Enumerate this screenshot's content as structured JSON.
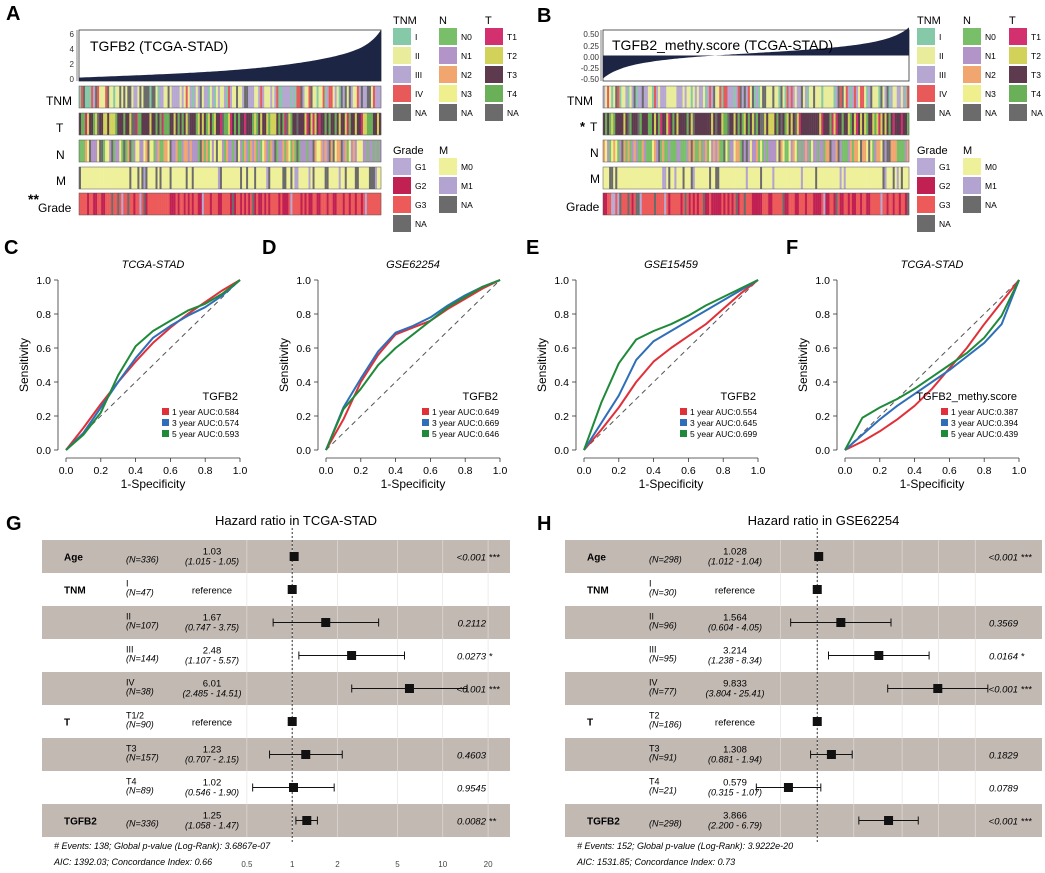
{
  "panels": {
    "A": "A",
    "B": "B",
    "C": "C",
    "D": "D",
    "E": "E",
    "F": "F",
    "G": "G",
    "H": "H"
  },
  "heatmaps": [
    {
      "panel": "A",
      "title": "TGFB2 (TCGA-STAD)",
      "yticks": [
        "6",
        "4",
        "2",
        "0"
      ],
      "yvals": [
        6,
        4,
        2,
        0
      ],
      "curve_start": 0.4,
      "curve_end": 6.0,
      "curve_type": "expression",
      "rows": [
        {
          "label": "TNM",
          "mark": ""
        },
        {
          "label": "T",
          "mark": ""
        },
        {
          "label": "N",
          "mark": ""
        },
        {
          "label": "M",
          "mark": ""
        },
        {
          "label": "Grade",
          "mark": "**"
        }
      ]
    },
    {
      "panel": "B",
      "title": "TGFB2_methy.score (TCGA-STAD)",
      "yticks": [
        "0.50",
        "0.25",
        "0.00",
        "-0.25",
        "-0.50"
      ],
      "yvals": [
        0.5,
        0.25,
        0.0,
        -0.25,
        -0.5
      ],
      "curve_start": -0.45,
      "curve_end": 0.55,
      "curve_type": "methylation",
      "rows": [
        {
          "label": "TNM",
          "mark": ""
        },
        {
          "label": "T",
          "mark": "*"
        },
        {
          "label": "N",
          "mark": ""
        },
        {
          "label": "M",
          "mark": ""
        },
        {
          "label": "Grade",
          "mark": ""
        }
      ]
    }
  ],
  "legend": {
    "TNM": {
      "title": "TNM",
      "items": [
        {
          "label": "I",
          "color": "#86c9a8"
        },
        {
          "label": "II",
          "color": "#e9ec9a"
        },
        {
          "label": "III",
          "color": "#b6a6d2"
        },
        {
          "label": "IV",
          "color": "#e85a5a"
        },
        {
          "label": "NA",
          "color": "#6b6b6b"
        }
      ]
    },
    "N": {
      "title": "N",
      "items": [
        {
          "label": "N0",
          "color": "#79bf69"
        },
        {
          "label": "N1",
          "color": "#b294c9"
        },
        {
          "label": "N2",
          "color": "#f2a66f"
        },
        {
          "label": "N3",
          "color": "#f0ef8e"
        },
        {
          "label": "NA",
          "color": "#6b6b6b"
        }
      ]
    },
    "T": {
      "title": "T",
      "items": [
        {
          "label": "T1",
          "color": "#d2306e"
        },
        {
          "label": "T2",
          "color": "#d2d25a"
        },
        {
          "label": "T3",
          "color": "#5e3a4f"
        },
        {
          "label": "T4",
          "color": "#6ab058"
        },
        {
          "label": "NA",
          "color": "#6b6b6b"
        }
      ]
    },
    "Grade": {
      "title": "Grade",
      "items": [
        {
          "label": "G1",
          "color": "#b8a9d5"
        },
        {
          "label": "G2",
          "color": "#c02052"
        },
        {
          "label": "G3",
          "color": "#ec5a5a"
        },
        {
          "label": "NA",
          "color": "#6b6b6b"
        }
      ]
    },
    "M": {
      "title": "M",
      "items": [
        {
          "label": "M0",
          "color": "#eef09a"
        },
        {
          "label": "M1",
          "color": "#b3a3d0"
        },
        {
          "label": "NA",
          "color": "#6b6b6b"
        }
      ]
    }
  },
  "chart_data": [
    {
      "panel": "C",
      "type": "line",
      "title": "TCGA-STAD",
      "xlabel": "1-Specificity",
      "ylabel": "Sensitivity",
      "xlim": [
        0,
        1
      ],
      "ylim": [
        0,
        1
      ],
      "ticks": [
        "0.0",
        "0.2",
        "0.4",
        "0.6",
        "0.8",
        "1.0"
      ],
      "legend_title": "TGFB2",
      "series": [
        {
          "name": "1 year AUC:0.584",
          "color": "#e0303a",
          "x": [
            0,
            0.1,
            0.2,
            0.3,
            0.4,
            0.5,
            0.6,
            0.7,
            0.8,
            0.9,
            1.0
          ],
          "y": [
            0,
            0.13,
            0.27,
            0.4,
            0.52,
            0.63,
            0.72,
            0.8,
            0.87,
            0.94,
            1.0
          ]
        },
        {
          "name": "3 year AUC:0.574",
          "color": "#2f6fba",
          "x": [
            0,
            0.1,
            0.2,
            0.3,
            0.4,
            0.5,
            0.6,
            0.7,
            0.8,
            0.9,
            1.0
          ],
          "y": [
            0,
            0.1,
            0.25,
            0.4,
            0.54,
            0.66,
            0.73,
            0.79,
            0.84,
            0.91,
            1.0
          ]
        },
        {
          "name": "5 year AUC:0.593",
          "color": "#1f8a3a",
          "x": [
            0,
            0.1,
            0.2,
            0.3,
            0.4,
            0.5,
            0.6,
            0.7,
            0.8,
            0.9,
            1.0
          ],
          "y": [
            0,
            0.09,
            0.22,
            0.44,
            0.61,
            0.7,
            0.76,
            0.82,
            0.86,
            0.92,
            1.0
          ]
        }
      ]
    },
    {
      "panel": "D",
      "type": "line",
      "title": "GSE62254",
      "xlabel": "1-Specificity",
      "ylabel": "Sensitivity",
      "xlim": [
        0,
        1
      ],
      "ylim": [
        0,
        1
      ],
      "ticks": [
        "0.0",
        "0.2",
        "0.4",
        "0.6",
        "0.8",
        "1.0"
      ],
      "legend_title": "TGFB2",
      "series": [
        {
          "name": "1 year AUC:0.649",
          "color": "#e0303a",
          "x": [
            0,
            0.1,
            0.2,
            0.3,
            0.4,
            0.5,
            0.6,
            0.7,
            0.8,
            0.9,
            1.0
          ],
          "y": [
            0,
            0.18,
            0.4,
            0.56,
            0.68,
            0.72,
            0.76,
            0.83,
            0.89,
            0.95,
            1.0
          ]
        },
        {
          "name": "3 year AUC:0.669",
          "color": "#2f6fba",
          "x": [
            0,
            0.1,
            0.2,
            0.3,
            0.4,
            0.5,
            0.6,
            0.7,
            0.8,
            0.9,
            1.0
          ],
          "y": [
            0,
            0.25,
            0.42,
            0.58,
            0.69,
            0.73,
            0.78,
            0.85,
            0.91,
            0.96,
            1.0
          ]
        },
        {
          "name": "5 year AUC:0.646",
          "color": "#1f8a3a",
          "x": [
            0,
            0.1,
            0.2,
            0.3,
            0.4,
            0.5,
            0.6,
            0.7,
            0.8,
            0.9,
            1.0
          ],
          "y": [
            0,
            0.24,
            0.36,
            0.5,
            0.6,
            0.68,
            0.76,
            0.84,
            0.9,
            0.96,
            1.0
          ]
        }
      ]
    },
    {
      "panel": "E",
      "type": "line",
      "title": "GSE15459",
      "xlabel": "1-Specificity",
      "ylabel": "Sensitivity",
      "xlim": [
        0,
        1
      ],
      "ylim": [
        0,
        1
      ],
      "ticks": [
        "0.0",
        "0.2",
        "0.4",
        "0.6",
        "0.8",
        "1.0"
      ],
      "legend_title": "TGFB2",
      "series": [
        {
          "name": "1 year AUC:0.554",
          "color": "#e0303a",
          "x": [
            0,
            0.1,
            0.2,
            0.3,
            0.4,
            0.5,
            0.6,
            0.7,
            0.8,
            0.9,
            1.0
          ],
          "y": [
            0,
            0.12,
            0.25,
            0.4,
            0.52,
            0.6,
            0.67,
            0.74,
            0.83,
            0.92,
            1.0
          ]
        },
        {
          "name": "3 year AUC:0.645",
          "color": "#2f6fba",
          "x": [
            0,
            0.1,
            0.2,
            0.3,
            0.4,
            0.5,
            0.6,
            0.7,
            0.8,
            0.9,
            1.0
          ],
          "y": [
            0,
            0.16,
            0.32,
            0.53,
            0.64,
            0.7,
            0.76,
            0.82,
            0.88,
            0.94,
            1.0
          ]
        },
        {
          "name": "5 year AUC:0.699",
          "color": "#1f8a3a",
          "x": [
            0,
            0.1,
            0.2,
            0.3,
            0.4,
            0.5,
            0.6,
            0.7,
            0.8,
            0.9,
            1.0
          ],
          "y": [
            0,
            0.28,
            0.51,
            0.65,
            0.7,
            0.74,
            0.79,
            0.85,
            0.9,
            0.95,
            1.0
          ]
        }
      ]
    },
    {
      "panel": "F",
      "type": "line",
      "title": "TCGA-STAD",
      "xlabel": "1-Specificity",
      "ylabel": "Sensitivity",
      "xlim": [
        0,
        1
      ],
      "ylim": [
        0,
        1
      ],
      "ticks": [
        "0.0",
        "0.2",
        "0.4",
        "0.6",
        "0.8",
        "1.0"
      ],
      "legend_title": "TGFB2_methy.score",
      "series": [
        {
          "name": "1 year AUC:0.387",
          "color": "#e0303a",
          "x": [
            0,
            0.1,
            0.2,
            0.3,
            0.4,
            0.5,
            0.6,
            0.7,
            0.8,
            0.9,
            1.0
          ],
          "y": [
            0,
            0.05,
            0.11,
            0.18,
            0.26,
            0.36,
            0.48,
            0.6,
            0.74,
            0.87,
            1.0
          ]
        },
        {
          "name": "3 year AUC:0.394",
          "color": "#2f6fba",
          "x": [
            0,
            0.1,
            0.2,
            0.3,
            0.4,
            0.5,
            0.6,
            0.7,
            0.8,
            0.9,
            1.0
          ],
          "y": [
            0,
            0.09,
            0.18,
            0.26,
            0.33,
            0.4,
            0.47,
            0.55,
            0.63,
            0.74,
            1.0
          ]
        },
        {
          "name": "5 year AUC:0.439",
          "color": "#1f8a3a",
          "x": [
            0,
            0.1,
            0.2,
            0.3,
            0.4,
            0.5,
            0.6,
            0.7,
            0.8,
            0.9,
            1.0
          ],
          "y": [
            0,
            0.19,
            0.25,
            0.3,
            0.36,
            0.43,
            0.5,
            0.57,
            0.66,
            0.79,
            1.0
          ]
        }
      ]
    },
    {
      "panel": "G",
      "type": "forest",
      "title": "Hazard ratio in TCGA-STAD",
      "scale": "log",
      "xlim": [
        0.45,
        24
      ],
      "ticks": [
        0.5,
        1,
        2,
        5,
        10,
        20
      ],
      "tick_labels": [
        "0.5",
        "1",
        "2",
        "5",
        "10",
        "20"
      ],
      "rows": [
        {
          "var": "Age",
          "level": "",
          "n": "(N=336)",
          "hr": 1.03,
          "hr_text": "1.03",
          "ci_text": "(1.015 - 1.05)",
          "lo": 1.015,
          "hi": 1.05,
          "p": "<0.001",
          "sig": "***",
          "shaded": true
        },
        {
          "var": "TNM",
          "level": "I",
          "n": "(N=47)",
          "hr": 1.0,
          "hr_text": "reference",
          "ci_text": "",
          "lo": 1.0,
          "hi": 1.0,
          "p": "",
          "sig": "",
          "shaded": false
        },
        {
          "var": "",
          "level": "II",
          "n": "(N=107)",
          "hr": 1.67,
          "hr_text": "1.67",
          "ci_text": "(0.747 - 3.75)",
          "lo": 0.747,
          "hi": 3.75,
          "p": "0.2112",
          "sig": "",
          "shaded": true
        },
        {
          "var": "",
          "level": "III",
          "n": "(N=144)",
          "hr": 2.48,
          "hr_text": "2.48",
          "ci_text": "(1.107 - 5.57)",
          "lo": 1.107,
          "hi": 5.57,
          "p": "0.0273",
          "sig": "*",
          "shaded": false
        },
        {
          "var": "",
          "level": "IV",
          "n": "(N=38)",
          "hr": 6.01,
          "hr_text": "6.01",
          "ci_text": "(2.485 - 14.51)",
          "lo": 2.485,
          "hi": 14.51,
          "p": "<0.001",
          "sig": "***",
          "shaded": true
        },
        {
          "var": "T",
          "level": "T1/2",
          "n": "(N=90)",
          "hr": 1.0,
          "hr_text": "reference",
          "ci_text": "",
          "lo": 1.0,
          "hi": 1.0,
          "p": "",
          "sig": "",
          "shaded": false
        },
        {
          "var": "",
          "level": "T3",
          "n": "(N=157)",
          "hr": 1.23,
          "hr_text": "1.23",
          "ci_text": "(0.707 - 2.15)",
          "lo": 0.707,
          "hi": 2.15,
          "p": "0.4603",
          "sig": "",
          "shaded": true
        },
        {
          "var": "",
          "level": "T4",
          "n": "(N=89)",
          "hr": 1.02,
          "hr_text": "1.02",
          "ci_text": "(0.546 - 1.90)",
          "lo": 0.546,
          "hi": 1.9,
          "p": "0.9545",
          "sig": "",
          "shaded": false
        },
        {
          "var": "TGFB2",
          "level": "",
          "n": "(N=336)",
          "hr": 1.25,
          "hr_text": "1.25",
          "ci_text": "(1.058 - 1.47)",
          "lo": 1.058,
          "hi": 1.47,
          "p": "0.0082",
          "sig": "**",
          "shaded": true
        }
      ],
      "footer1": "# Events: 138; Global p-value (Log-Rank): 3.6867e-07",
      "footer2": "AIC: 1392.03; Concordance Index: 0.66"
    },
    {
      "panel": "H",
      "type": "forest",
      "title": "Hazard ratio in GSE62254",
      "scale": "log",
      "xlim": [
        0.24,
        32
      ],
      "ticks": [
        0.5,
        1,
        2,
        5,
        10,
        20
      ],
      "tick_labels": [
        "",
        "",
        "",
        "",
        "",
        ""
      ],
      "rows": [
        {
          "var": "Age",
          "level": "",
          "n": "(N=298)",
          "hr": 1.028,
          "hr_text": "1.028",
          "ci_text": "(1.012 - 1.04)",
          "lo": 1.012,
          "hi": 1.04,
          "p": "<0.001",
          "sig": "***",
          "shaded": true
        },
        {
          "var": "TNM",
          "level": "I",
          "n": "(N=30)",
          "hr": 1.0,
          "hr_text": "reference",
          "ci_text": "",
          "lo": 1.0,
          "hi": 1.0,
          "p": "",
          "sig": "",
          "shaded": false
        },
        {
          "var": "",
          "level": "II",
          "n": "(N=96)",
          "hr": 1.564,
          "hr_text": "1.564",
          "ci_text": "(0.604 - 4.05)",
          "lo": 0.604,
          "hi": 4.05,
          "p": "0.3569",
          "sig": "",
          "shaded": true
        },
        {
          "var": "",
          "level": "III",
          "n": "(N=95)",
          "hr": 3.214,
          "hr_text": "3.214",
          "ci_text": "(1.238 - 8.34)",
          "lo": 1.238,
          "hi": 8.34,
          "p": "0.0164",
          "sig": "*",
          "shaded": false
        },
        {
          "var": "",
          "level": "IV",
          "n": "(N=77)",
          "hr": 9.833,
          "hr_text": "9.833",
          "ci_text": "(3.804 - 25.41)",
          "lo": 3.804,
          "hi": 25.41,
          "p": "<0.001",
          "sig": "***",
          "shaded": true
        },
        {
          "var": "T",
          "level": "T2",
          "n": "(N=186)",
          "hr": 1.0,
          "hr_text": "reference",
          "ci_text": "",
          "lo": 1.0,
          "hi": 1.0,
          "p": "",
          "sig": "",
          "shaded": false
        },
        {
          "var": "",
          "level": "T3",
          "n": "(N=91)",
          "hr": 1.308,
          "hr_text": "1.308",
          "ci_text": "(0.881 - 1.94)",
          "lo": 0.881,
          "hi": 1.94,
          "p": "0.1829",
          "sig": "",
          "shaded": true
        },
        {
          "var": "",
          "level": "T4",
          "n": "(N=21)",
          "hr": 0.579,
          "hr_text": "0.579",
          "ci_text": "(0.315 - 1.07)",
          "lo": 0.315,
          "hi": 1.07,
          "p": "0.0789",
          "sig": "",
          "shaded": false
        },
        {
          "var": "TGFB2",
          "level": "",
          "n": "(N=298)",
          "hr": 3.866,
          "hr_text": "3.866",
          "ci_text": "(2.200 - 6.79)",
          "lo": 2.2,
          "hi": 6.79,
          "p": "<0.001",
          "sig": "***",
          "shaded": true
        }
      ],
      "footer1": "# Events: 152; Global p-value (Log-Rank): 3.9222e-20",
      "footer2": "AIC: 1531.85; Concordance Index: 0.73"
    }
  ]
}
